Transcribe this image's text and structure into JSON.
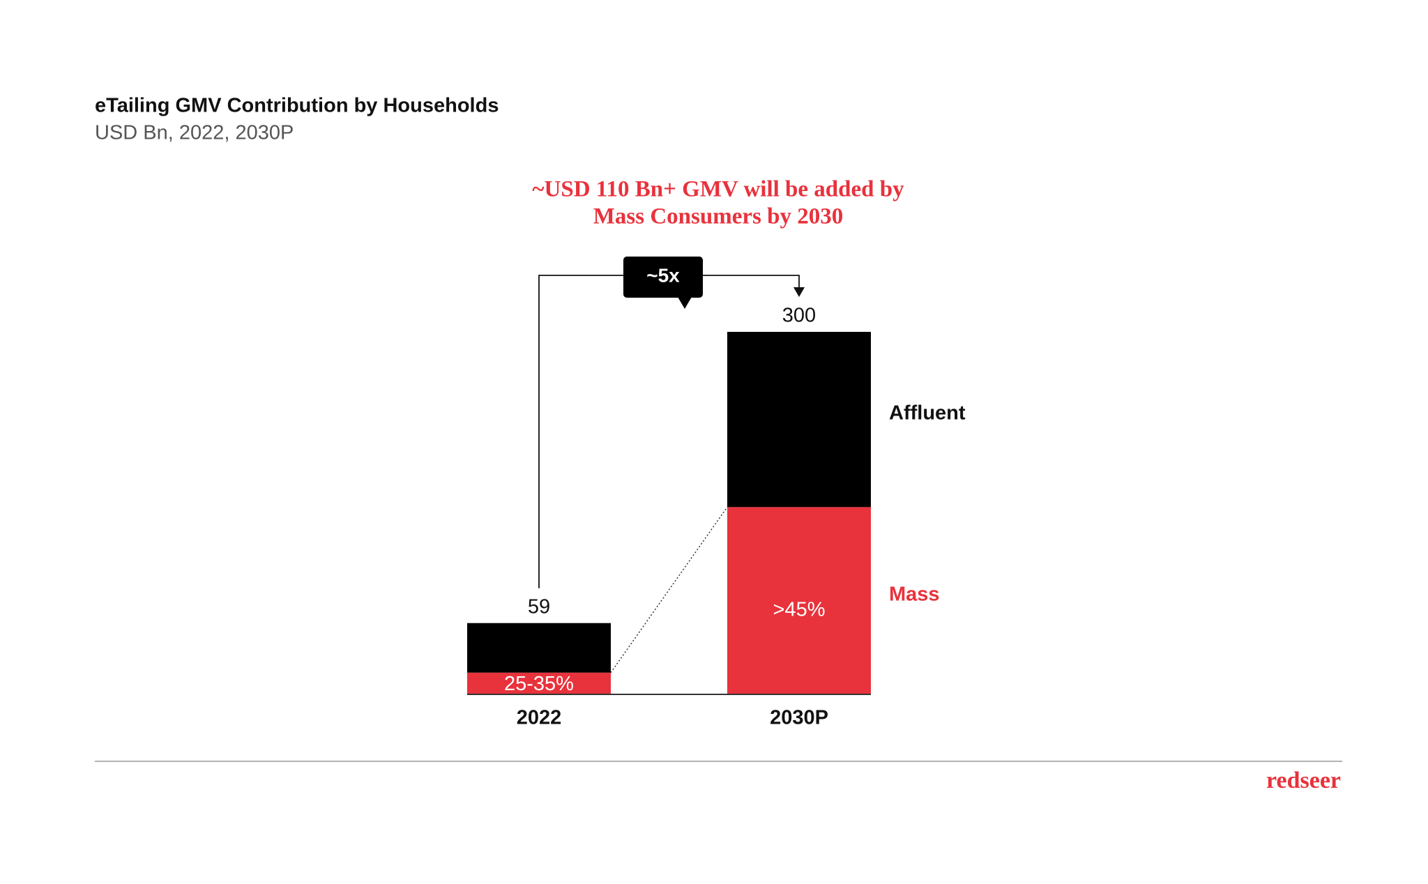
{
  "chart_data": {
    "type": "stacked_bar",
    "title": "eTailing GMV Contribution by Households",
    "subtitle": "USD Bn, 2022, 2030P",
    "headline": [
      "~USD 110 Bn+ GMV will be added by",
      "Mass Consumers by 2030"
    ],
    "growth_label": "~5x",
    "categories": [
      "2022",
      "2030P"
    ],
    "totals": [
      59,
      300
    ],
    "series": [
      {
        "name": "Mass",
        "color": "#e8323c",
        "values": [
          18,
          155
        ],
        "share_labels": [
          "25-35%",
          ">45%"
        ]
      },
      {
        "name": "Affluent",
        "color": "#000000",
        "values": [
          41,
          145
        ]
      }
    ]
  },
  "brand": "redseer"
}
